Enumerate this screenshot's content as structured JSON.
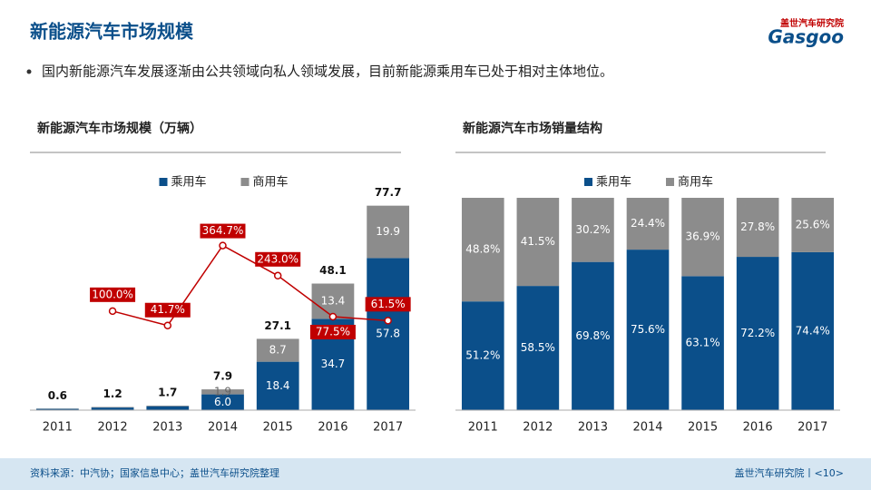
{
  "header": {
    "title": "新能源汽车市场规模",
    "logo_top": "盖世汽车研究院",
    "logo_main": "Gasgoo"
  },
  "bullet": "国内新能源汽车发展逐渐由公共领域向私人领域发展，目前新能源乘用车已处于相对主体地位。",
  "chart_data": [
    {
      "type": "bar",
      "stacked": true,
      "title": "新能源汽车市场规模（万辆）",
      "categories": [
        "2011",
        "2012",
        "2013",
        "2014",
        "2015",
        "2016",
        "2017"
      ],
      "ylim": [
        0,
        80
      ],
      "y2lim": [
        -300,
        550
      ],
      "series": [
        {
          "name": "乘用车",
          "color": "#0b4f8a",
          "values": [
            0.5,
            1.0,
            1.5,
            6.0,
            18.4,
            34.7,
            57.8
          ],
          "value_labels": [
            null,
            null,
            null,
            "6.0",
            "18.4",
            "34.7",
            "57.8"
          ]
        },
        {
          "name": "商用车",
          "color": "#8c8c8c",
          "values": [
            0.1,
            0.2,
            0.2,
            1.9,
            8.7,
            13.4,
            19.9
          ],
          "value_labels": [
            null,
            null,
            null,
            "1.9",
            "8.7",
            "13.4",
            "19.9"
          ]
        },
        {
          "type": "line",
          "axis": "y2",
          "color": "#c00000",
          "values": [
            null,
            100.0,
            41.7,
            364.7,
            243.0,
            77.5,
            61.5
          ],
          "value_labels": [
            null,
            "100.0%",
            "41.7%",
            "364.7%",
            "243.0%",
            "77.5%",
            "61.5%"
          ]
        }
      ],
      "totals": [
        0.6,
        1.2,
        1.7,
        7.9,
        27.1,
        48.1,
        77.7
      ]
    },
    {
      "type": "bar",
      "stacked": true,
      "title": "新能源汽车市场销量结构",
      "categories": [
        "2011",
        "2012",
        "2013",
        "2014",
        "2015",
        "2016",
        "2017"
      ],
      "ylim": [
        0,
        100
      ],
      "series": [
        {
          "name": "乘用车",
          "color": "#0b4f8a",
          "values": [
            51.2,
            58.5,
            69.8,
            75.6,
            63.1,
            72.2,
            74.4
          ],
          "value_labels": [
            "51.2%",
            "58.5%",
            "69.8%",
            "75.6%",
            "63.1%",
            "72.2%",
            "74.4%"
          ]
        },
        {
          "name": "商用车",
          "color": "#8c8c8c",
          "values": [
            48.8,
            41.5,
            30.2,
            24.4,
            36.9,
            27.8,
            25.6
          ],
          "value_labels": [
            "48.8%",
            "41.5%",
            "30.2%",
            "24.4%",
            "36.9%",
            "27.8%",
            "25.6%"
          ]
        }
      ]
    }
  ],
  "footer": {
    "source": "资料来源：中汽协；国家信息中心；盖世汽车研究院整理",
    "page": "盖世汽车研究院丨<10>"
  }
}
